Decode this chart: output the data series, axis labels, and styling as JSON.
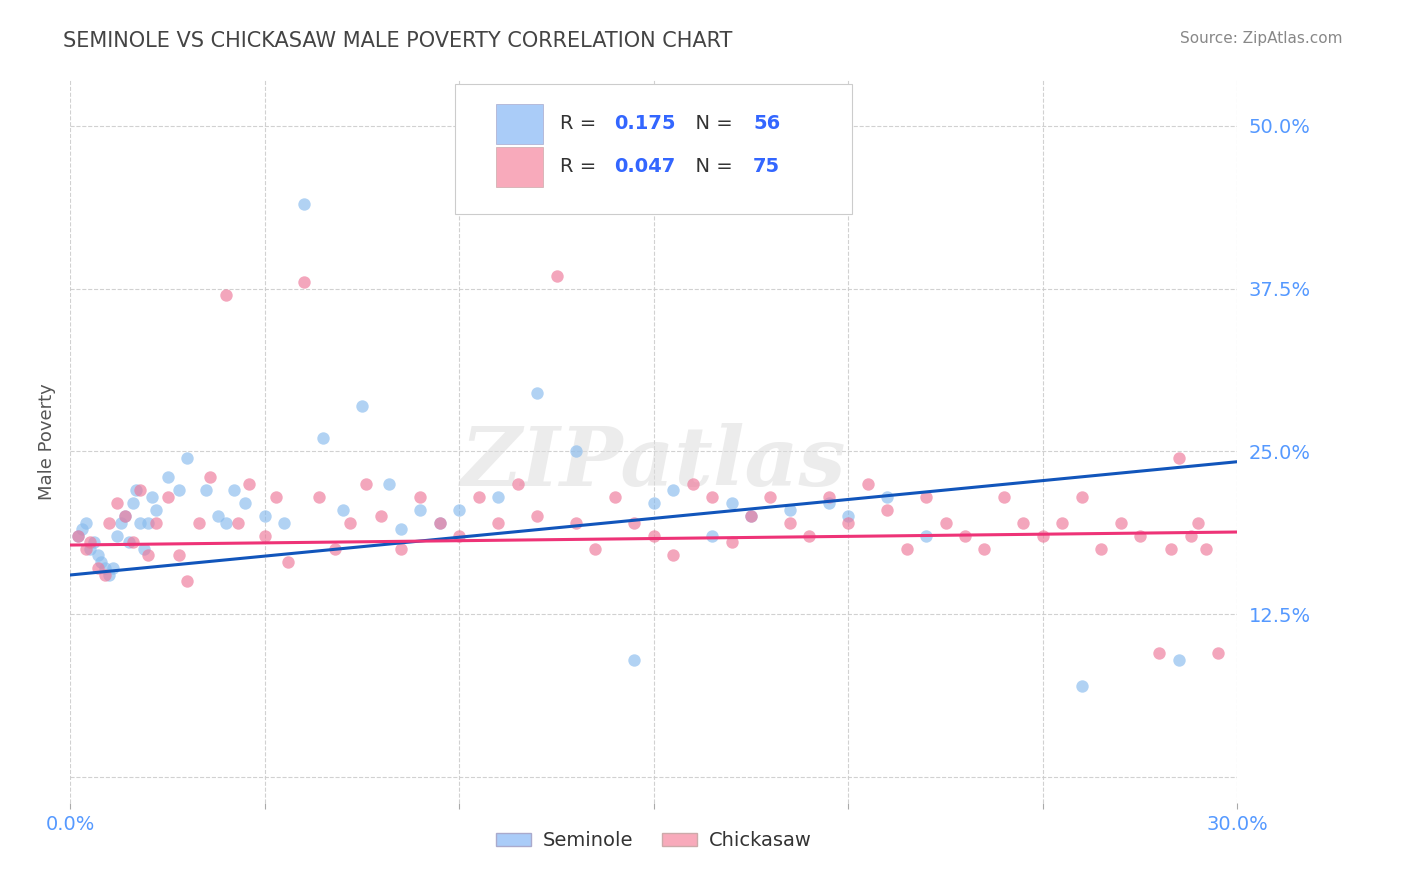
{
  "title": "SEMINOLE VS CHICKASAW MALE POVERTY CORRELATION CHART",
  "source_text": "Source: ZipAtlas.com",
  "ylabel": "Male Poverty",
  "xlim": [
    0.0,
    0.3
  ],
  "ylim": [
    -0.02,
    0.535
  ],
  "xticks": [
    0.0,
    0.05,
    0.1,
    0.15,
    0.2,
    0.25,
    0.3
  ],
  "xticklabels": [
    "0.0%",
    "",
    "",
    "",
    "",
    "",
    "30.0%"
  ],
  "ytick_positions": [
    0.0,
    0.125,
    0.25,
    0.375,
    0.5
  ],
  "ytick_labels": [
    "",
    "12.5%",
    "25.0%",
    "37.5%",
    "50.0%"
  ],
  "grid_color": "#cccccc",
  "background_color": "#ffffff",
  "title_color": "#444444",
  "axis_label_color": "#555555",
  "tick_label_color": "#5599ff",
  "watermark": "ZIPatlas",
  "series": [
    {
      "name": "Seminole",
      "legend_color": "#aaccf8",
      "dot_color": "#88bbee",
      "R": 0.175,
      "N": 56,
      "trend_color": "#1155bb",
      "trend_y0": 0.155,
      "trend_y1": 0.242
    },
    {
      "name": "Chickasaw",
      "legend_color": "#f8aabb",
      "dot_color": "#ee7799",
      "R": 0.047,
      "N": 75,
      "trend_color": "#ee3377",
      "trend_y0": 0.178,
      "trend_y1": 0.188
    }
  ],
  "legend_R_color": "#3366ff",
  "legend_N_color": "#3366ff",
  "source_color": "#888888"
}
